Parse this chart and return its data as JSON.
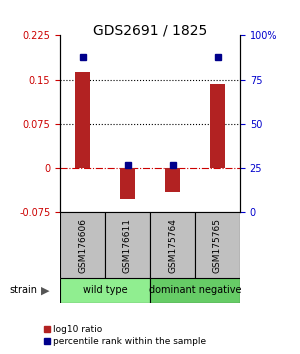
{
  "title": "GDS2691 / 1825",
  "samples": [
    "GSM176606",
    "GSM176611",
    "GSM175764",
    "GSM175765"
  ],
  "log10_ratio": [
    0.163,
    -0.053,
    -0.04,
    0.143
  ],
  "percentile_rank": [
    88,
    27,
    27,
    88
  ],
  "groups": [
    {
      "label": "wild type",
      "samples": [
        0,
        1
      ],
      "color": "#90EE90"
    },
    {
      "label": "dominant negative",
      "samples": [
        2,
        3
      ],
      "color": "#66CC66"
    }
  ],
  "strain_label": "strain",
  "bar_color": "#B22222",
  "dot_color": "#00008B",
  "ylim_left": [
    -0.075,
    0.225
  ],
  "ylim_right": [
    0,
    100
  ],
  "yticks_left": [
    -0.075,
    0,
    0.075,
    0.15,
    0.225
  ],
  "ytick_labels_left": [
    "-0.075",
    "0",
    "0.075",
    "0.15",
    "0.225"
  ],
  "yticks_right": [
    0,
    25,
    50,
    75,
    100
  ],
  "ytick_labels_right": [
    "0",
    "25",
    "50",
    "75",
    "100%"
  ],
  "hlines": [
    0.075,
    0.15
  ],
  "legend_log10": "log10 ratio",
  "legend_pct": "percentile rank within the sample",
  "background_color": "#ffffff",
  "plot_bg": "#ffffff",
  "label_color_left": "#CC0000",
  "label_color_right": "#0000CC",
  "zero_line_color": "#CC0000",
  "sample_box_color": "#C0C0C0",
  "bar_width": 0.35
}
